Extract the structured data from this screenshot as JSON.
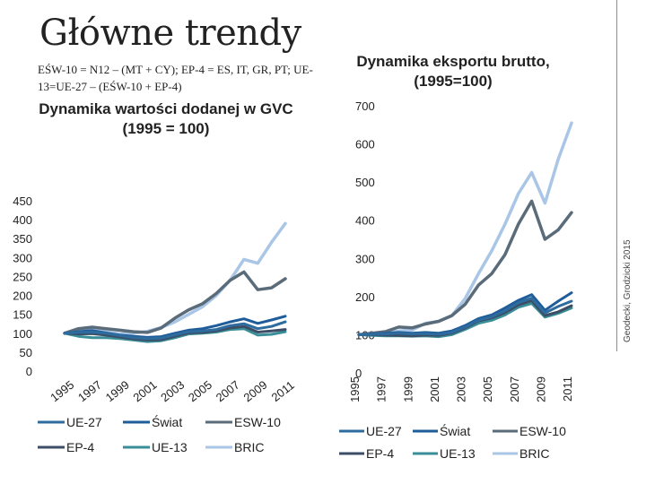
{
  "page": {
    "title": "Główne trendy",
    "note": "EŚW-10 = N12 – (MT + CY); EP-4 = ES, IT, GR, PT; UE-13=UE-27 – (EŚW-10 + EP-4)",
    "credit": "Geodecki, Grodzicki 2015"
  },
  "colors": {
    "UE-27": "#2e6b9e",
    "Świat": "#1f5d9a",
    "ESW-10": "#5a6b7a",
    "EP-4": "#3b4e66",
    "UE-13": "#3a8e98",
    "BRIC": "#a9c6e6"
  },
  "chart_data": [
    {
      "type": "line",
      "title": "Dynamika wartości dodanej w GVC (1995 = 100)",
      "x": [
        1995,
        1996,
        1997,
        1998,
        1999,
        2000,
        2001,
        2002,
        2003,
        2004,
        2005,
        2006,
        2007,
        2008,
        2009,
        2010,
        2011
      ],
      "xticks": [
        "1995",
        "1997",
        "1999",
        "2001",
        "2003",
        "2005",
        "2007",
        "2009",
        "2011"
      ],
      "ylim": [
        0,
        450
      ],
      "yticks": [
        0,
        50,
        100,
        150,
        200,
        250,
        300,
        350,
        400,
        450
      ],
      "legend_position": "bottom",
      "series": [
        {
          "name": "UE-27",
          "values": [
            100,
            102,
            103,
            100,
            94,
            88,
            86,
            87,
            96,
            104,
            106,
            110,
            120,
            125,
            112,
            118,
            130
          ]
        },
        {
          "name": "Świat",
          "values": [
            100,
            104,
            107,
            101,
            95,
            92,
            89,
            91,
            100,
            108,
            112,
            120,
            130,
            138,
            126,
            135,
            145
          ]
        },
        {
          "name": "ESW-10",
          "values": [
            100,
            112,
            116,
            112,
            108,
            104,
            102,
            114,
            140,
            162,
            178,
            205,
            240,
            262,
            215,
            220,
            244
          ]
        },
        {
          "name": "EP-4",
          "values": [
            100,
            98,
            99,
            95,
            90,
            85,
            82,
            83,
            92,
            101,
            102,
            106,
            114,
            118,
            103,
            106,
            110
          ]
        },
        {
          "name": "UE-13",
          "values": [
            100,
            92,
            88,
            88,
            86,
            82,
            78,
            80,
            88,
            98,
            100,
            103,
            110,
            112,
            95,
            97,
            104
          ]
        },
        {
          "name": "BRIC",
          "values": [
            100,
            105,
            110,
            104,
            98,
            100,
            105,
            115,
            130,
            150,
            170,
            200,
            240,
            295,
            285,
            340,
            390
          ]
        }
      ]
    },
    {
      "type": "line",
      "title": "Dynamika eksportu brutto, (1995=100)",
      "x": [
        1995,
        1996,
        1997,
        1998,
        1999,
        2000,
        2001,
        2002,
        2003,
        2004,
        2005,
        2006,
        2007,
        2008,
        2009,
        2010,
        2011
      ],
      "xticks": [
        "1995",
        "1997",
        "1999",
        "2001",
        "2003",
        "2005",
        "2007",
        "2009",
        "2011"
      ],
      "ylim": [
        0,
        700
      ],
      "yticks": [
        0,
        100,
        200,
        300,
        400,
        500,
        600,
        700
      ],
      "legend_position": "bottom",
      "series": [
        {
          "name": "UE-27",
          "values": [
            100,
            101,
            102,
            104,
            102,
            103,
            101,
            106,
            120,
            138,
            147,
            163,
            184,
            196,
            157,
            174,
            188
          ]
        },
        {
          "name": "Świat",
          "values": [
            100,
            102,
            104,
            106,
            104,
            106,
            104,
            110,
            124,
            142,
            152,
            170,
            190,
            205,
            164,
            188,
            210
          ]
        },
        {
          "name": "ESW-10",
          "values": [
            100,
            104,
            108,
            120,
            118,
            128,
            135,
            150,
            180,
            230,
            260,
            310,
            390,
            450,
            350,
            375,
            420
          ]
        },
        {
          "name": "EP-4",
          "values": [
            100,
            100,
            99,
            98,
            97,
            99,
            98,
            104,
            118,
            136,
            144,
            158,
            178,
            189,
            150,
            160,
            176
          ]
        },
        {
          "name": "UE-13",
          "values": [
            100,
            98,
            97,
            97,
            96,
            97,
            95,
            100,
            114,
            130,
            138,
            152,
            172,
            182,
            146,
            156,
            170
          ]
        },
        {
          "name": "BRIC",
          "values": [
            100,
            102,
            104,
            110,
            112,
            130,
            135,
            150,
            195,
            260,
            320,
            390,
            470,
            525,
            445,
            560,
            655
          ]
        }
      ]
    }
  ]
}
